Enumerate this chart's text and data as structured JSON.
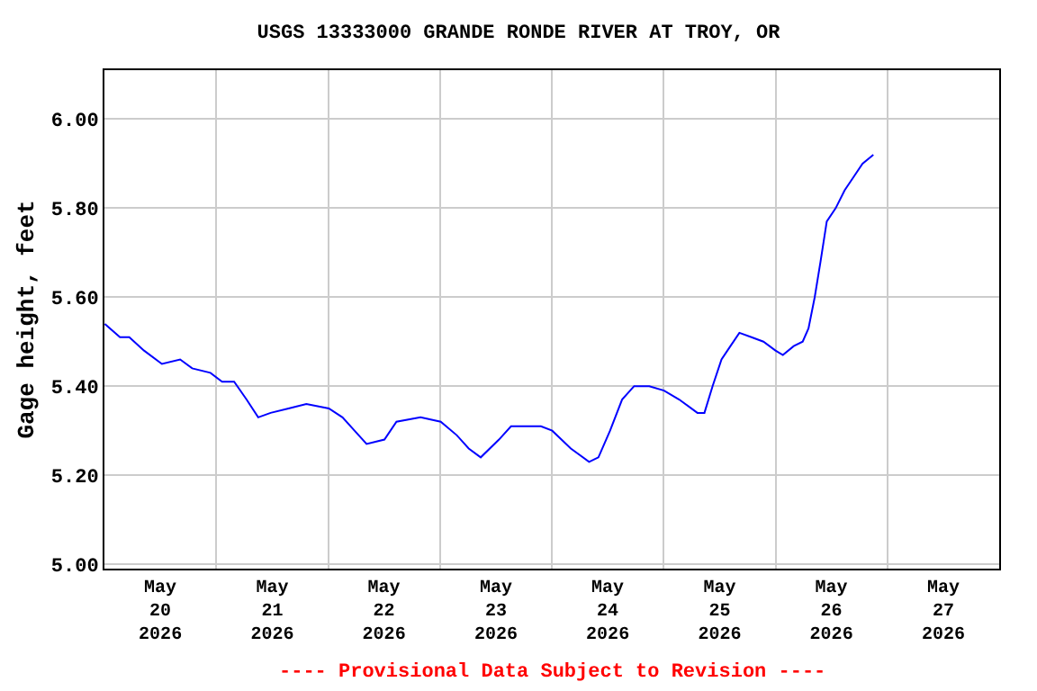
{
  "chart_data": {
    "type": "line",
    "title": "USGS 13333000 GRANDE RONDE RIVER AT TROY, OR",
    "ylabel": "Gage height, feet",
    "annotations": [
      "---- Provisional Data Subject to Revision ----"
    ],
    "xlim": [
      "2026-05-20T00:00",
      "2026-05-28T00:00"
    ],
    "xticks": [
      {
        "value": "2026-05-20T12:00",
        "label": "May\n20\n2026"
      },
      {
        "value": "2026-05-21T12:00",
        "label": "May\n21\n2026"
      },
      {
        "value": "2026-05-22T12:00",
        "label": "May\n22\n2026"
      },
      {
        "value": "2026-05-23T12:00",
        "label": "May\n23\n2026"
      },
      {
        "value": "2026-05-24T12:00",
        "label": "May\n24\n2026"
      },
      {
        "value": "2026-05-25T12:00",
        "label": "May\n25\n2026"
      },
      {
        "value": "2026-05-26T12:00",
        "label": "May\n26\n2026"
      },
      {
        "value": "2026-05-27T12:00",
        "label": "May\n27\n2026"
      },
      {
        "value": "2026-05-21T00:00",
        "label": null
      },
      {
        "value": "2026-05-22T00:00",
        "label": null
      },
      {
        "value": "2026-05-23T00:00",
        "label": null
      },
      {
        "value": "2026-05-24T00:00",
        "label": null
      },
      {
        "value": "2026-05-25T00:00",
        "label": null
      },
      {
        "value": "2026-05-26T00:00",
        "label": null
      },
      {
        "value": "2026-05-27T00:00",
        "label": null
      }
    ],
    "ylim": [
      4.99,
      6.11
    ],
    "yticks": [
      {
        "value": 5.0,
        "label": "5.00"
      },
      {
        "value": 5.2,
        "label": "5.20"
      },
      {
        "value": 5.4,
        "label": "5.40"
      },
      {
        "value": 5.6,
        "label": "5.60"
      },
      {
        "value": 5.8,
        "label": "5.80"
      },
      {
        "value": 6.0,
        "label": "6.00"
      }
    ],
    "grid": true,
    "marker": "none",
    "line_style": "solid",
    "x": [
      "2026-05-20T00:05",
      "2026-05-20T03:20",
      "2026-05-20T05:20",
      "2026-05-20T08:30",
      "2026-05-20T12:20",
      "2026-05-20T16:15",
      "2026-05-20T18:50",
      "2026-05-20T22:45",
      "2026-05-21T01:15",
      "2026-05-21T03:50",
      "2026-05-21T06:30",
      "2026-05-21T09:00",
      "2026-05-21T11:40",
      "2026-05-21T15:30",
      "2026-05-21T19:20",
      "2026-05-22T00:10",
      "2026-05-22T03:05",
      "2026-05-22T05:40",
      "2026-05-22T08:15",
      "2026-05-22T12:05",
      "2026-05-22T14:40",
      "2026-05-22T19:50",
      "2026-05-23T00:10",
      "2026-05-23T03:35",
      "2026-05-23T06:10",
      "2026-05-23T08:45",
      "2026-05-23T12:40",
      "2026-05-23T15:15",
      "2026-05-23T17:50",
      "2026-05-23T21:40",
      "2026-05-24T00:05",
      "2026-05-24T04:05",
      "2026-05-24T08:00",
      "2026-05-24T10:00",
      "2026-05-24T12:30",
      "2026-05-24T15:05",
      "2026-05-24T17:40",
      "2026-05-24T20:55",
      "2026-05-25T00:05",
      "2026-05-25T03:20",
      "2026-05-25T07:15",
      "2026-05-25T08:45",
      "2026-05-25T10:30",
      "2026-05-25T12:25",
      "2026-05-25T14:20",
      "2026-05-25T16:15",
      "2026-05-25T18:50",
      "2026-05-25T21:25",
      "2026-05-26T00:00",
      "2026-05-26T01:35",
      "2026-05-26T03:55",
      "2026-05-26T05:50",
      "2026-05-26T07:05",
      "2026-05-26T08:25",
      "2026-05-26T09:40",
      "2026-05-26T11:00",
      "2026-05-26T12:55",
      "2026-05-26T14:50",
      "2026-05-26T16:45",
      "2026-05-26T18:40",
      "2026-05-26T21:00"
    ],
    "series": [
      {
        "color": "#0000ff",
        "values": [
          5.54,
          5.51,
          5.51,
          5.48,
          5.45,
          5.46,
          5.44,
          5.43,
          5.41,
          5.41,
          5.37,
          5.33,
          5.34,
          5.35,
          5.36,
          5.35,
          5.33,
          5.3,
          5.27,
          5.28,
          5.32,
          5.33,
          5.32,
          5.29,
          5.26,
          5.24,
          5.28,
          5.31,
          5.31,
          5.31,
          5.3,
          5.26,
          5.23,
          5.24,
          5.3,
          5.37,
          5.4,
          5.4,
          5.39,
          5.37,
          5.34,
          5.34,
          5.4,
          5.46,
          5.49,
          5.52,
          5.51,
          5.5,
          5.48,
          5.47,
          5.49,
          5.5,
          5.53,
          5.6,
          5.68,
          5.77,
          5.8,
          5.84,
          5.87,
          5.9,
          5.92
        ]
      }
    ]
  }
}
